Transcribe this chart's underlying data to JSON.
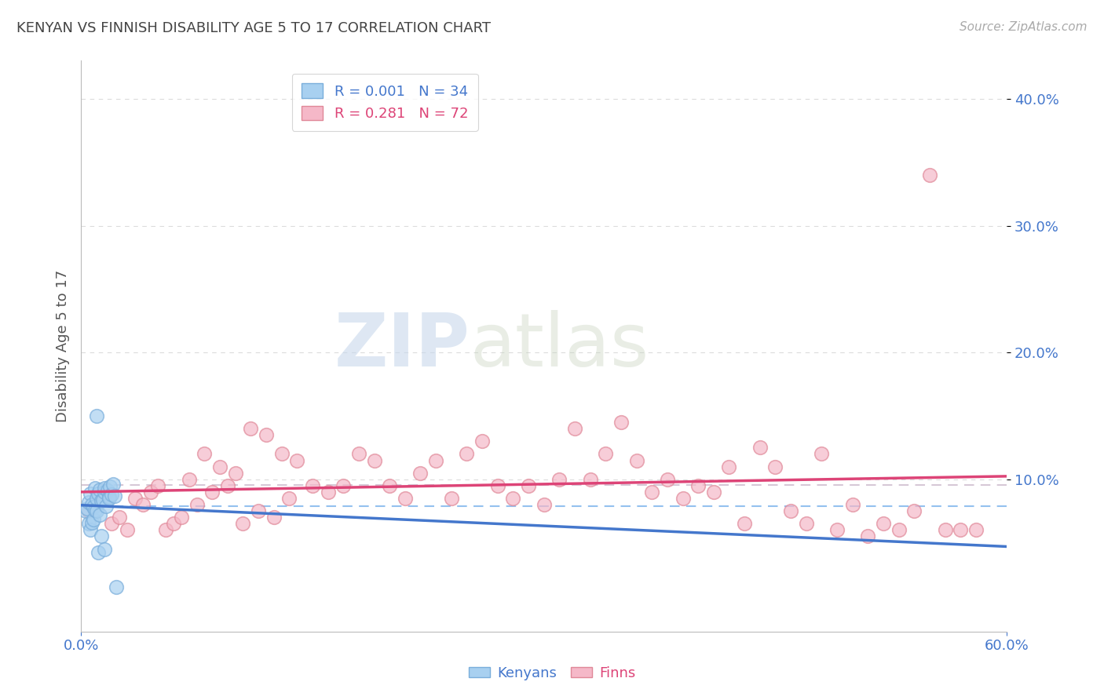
{
  "title": "KENYAN VS FINNISH DISABILITY AGE 5 TO 17 CORRELATION CHART",
  "source": "Source: ZipAtlas.com",
  "ylabel": "Disability Age 5 to 17",
  "xlim": [
    0.0,
    0.6
  ],
  "ylim": [
    -0.02,
    0.43
  ],
  "xticks": [
    0.0,
    0.6
  ],
  "xticklabels": [
    "0.0%",
    "60.0%"
  ],
  "yticks": [
    0.1,
    0.2,
    0.3,
    0.4
  ],
  "yticklabels": [
    "10.0%",
    "20.0%",
    "30.0%",
    "40.0%"
  ],
  "kenyan_color": "#a8d0f0",
  "kenyan_color_edge": "#7aaedb",
  "finn_color": "#f5b8c8",
  "finn_color_edge": "#e08898",
  "kenyan_R": 0.001,
  "kenyan_N": 34,
  "finn_R": 0.281,
  "finn_N": 72,
  "title_color": "#444444",
  "axis_label_color": "#555555",
  "tick_color": "#4477cc",
  "grid_color": "#cccccc",
  "kenyan_line_color": "#4477cc",
  "finn_line_color": "#dd4477",
  "mean_line_kenyan_color": "#88bbee",
  "mean_line_finn_color": "#ccbbcc",
  "watermark_color": "#c8d8ec",
  "kenyan_x": [
    0.003,
    0.004,
    0.005,
    0.005,
    0.006,
    0.006,
    0.007,
    0.007,
    0.008,
    0.008,
    0.009,
    0.009,
    0.01,
    0.01,
    0.01,
    0.011,
    0.011,
    0.012,
    0.012,
    0.013,
    0.013,
    0.014,
    0.015,
    0.015,
    0.015,
    0.016,
    0.017,
    0.018,
    0.018,
    0.019,
    0.02,
    0.021,
    0.022,
    0.023
  ],
  "kenyan_y": [
    0.075,
    0.077,
    0.082,
    0.065,
    0.06,
    0.089,
    0.08,
    0.066,
    0.078,
    0.068,
    0.076,
    0.093,
    0.085,
    0.075,
    0.15,
    0.089,
    0.042,
    0.092,
    0.072,
    0.083,
    0.055,
    0.084,
    0.09,
    0.093,
    0.045,
    0.079,
    0.091,
    0.086,
    0.085,
    0.094,
    0.088,
    0.096,
    0.087,
    0.015
  ],
  "finn_x": [
    0.005,
    0.01,
    0.015,
    0.02,
    0.025,
    0.03,
    0.035,
    0.04,
    0.045,
    0.05,
    0.055,
    0.06,
    0.065,
    0.07,
    0.075,
    0.08,
    0.085,
    0.09,
    0.095,
    0.1,
    0.105,
    0.11,
    0.115,
    0.12,
    0.125,
    0.13,
    0.135,
    0.14,
    0.15,
    0.16,
    0.17,
    0.18,
    0.19,
    0.2,
    0.21,
    0.22,
    0.23,
    0.24,
    0.25,
    0.26,
    0.27,
    0.28,
    0.29,
    0.3,
    0.31,
    0.32,
    0.33,
    0.34,
    0.35,
    0.36,
    0.37,
    0.38,
    0.39,
    0.4,
    0.41,
    0.42,
    0.43,
    0.44,
    0.45,
    0.46,
    0.47,
    0.48,
    0.49,
    0.5,
    0.51,
    0.52,
    0.53,
    0.54,
    0.55,
    0.56,
    0.57,
    0.58
  ],
  "finn_y": [
    0.075,
    0.08,
    0.085,
    0.065,
    0.07,
    0.06,
    0.085,
    0.08,
    0.09,
    0.095,
    0.06,
    0.065,
    0.07,
    0.1,
    0.08,
    0.12,
    0.09,
    0.11,
    0.095,
    0.105,
    0.065,
    0.14,
    0.075,
    0.135,
    0.07,
    0.12,
    0.085,
    0.115,
    0.095,
    0.09,
    0.095,
    0.12,
    0.115,
    0.095,
    0.085,
    0.105,
    0.115,
    0.085,
    0.12,
    0.13,
    0.095,
    0.085,
    0.095,
    0.08,
    0.1,
    0.14,
    0.1,
    0.12,
    0.145,
    0.115,
    0.09,
    0.1,
    0.085,
    0.095,
    0.09,
    0.11,
    0.065,
    0.125,
    0.11,
    0.075,
    0.065,
    0.12,
    0.06,
    0.08,
    0.055,
    0.065,
    0.06,
    0.075,
    0.34,
    0.06,
    0.06,
    0.06
  ]
}
